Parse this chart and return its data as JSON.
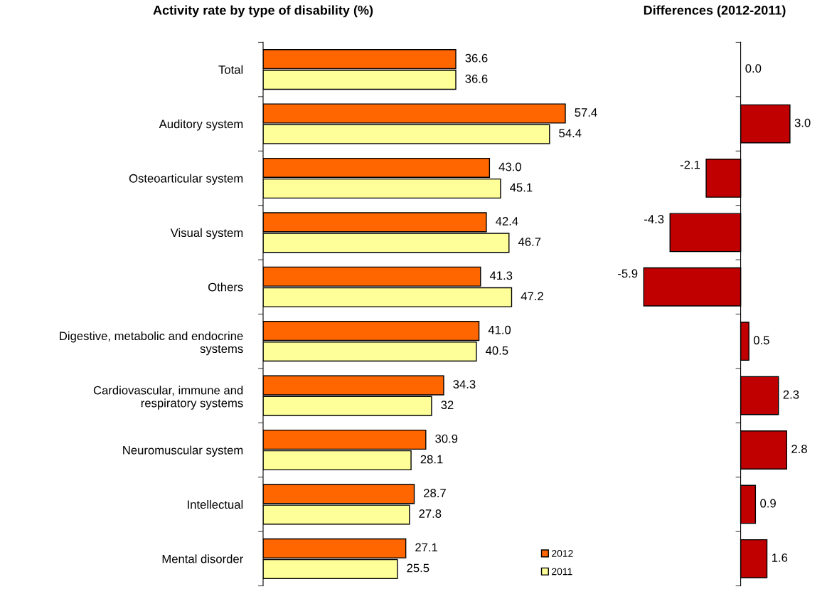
{
  "chart_data": [
    {
      "type": "bar",
      "orientation": "horizontal",
      "title": "Activity rate by type of disability (%)",
      "categories": [
        "Total",
        "Auditory system",
        "Osteoarticular system",
        "Visual system",
        "Others",
        "Digestive, metabolic and endocrine\nsystems",
        "Cardiovascular, immune and\nrespiratory systems",
        "Neuromuscular system",
        "Intellectual",
        "Mental disorder"
      ],
      "series": [
        {
          "name": "2012",
          "color": "#ff6600",
          "values": [
            36.6,
            57.4,
            43.0,
            42.4,
            41.3,
            41.0,
            34.3,
            30.9,
            28.7,
            27.1
          ],
          "value_labels": [
            "36.6",
            "57.4",
            "43.0",
            "42.4",
            "41.3",
            "41.0",
            "34.3",
            "30.9",
            "28.7",
            "27.1"
          ]
        },
        {
          "name": "2011",
          "color": "#ffff99",
          "values": [
            36.6,
            54.4,
            45.1,
            46.7,
            47.2,
            40.5,
            32,
            28.1,
            27.8,
            25.5
          ],
          "value_labels": [
            "36.6",
            "54.4",
            "45.1",
            "46.7",
            "47.2",
            "40.5",
            "32",
            "28.1",
            "27.8",
            "25.5"
          ]
        }
      ],
      "legend": "bottom right",
      "grid": false,
      "tick_labels": "y"
    },
    {
      "type": "bar",
      "orientation": "horizontal",
      "title": "Differences (2012-2011)",
      "categories": [
        null,
        null,
        null,
        null,
        null,
        null,
        null,
        null,
        null,
        null
      ],
      "series": [
        {
          "color": "#c00000",
          "values": [
            0.0,
            3.0,
            -2.1,
            -4.3,
            -5.9,
            0.5,
            2.3,
            2.8,
            0.9,
            1.6
          ],
          "value_labels": [
            "0.0",
            "3.0",
            "-2.1",
            "-4.3",
            "-5.9",
            "0.5",
            "2.3",
            "2.8",
            "0.9",
            "1.6"
          ]
        }
      ],
      "legend": false,
      "grid": false,
      "tick_labels": false
    }
  ]
}
